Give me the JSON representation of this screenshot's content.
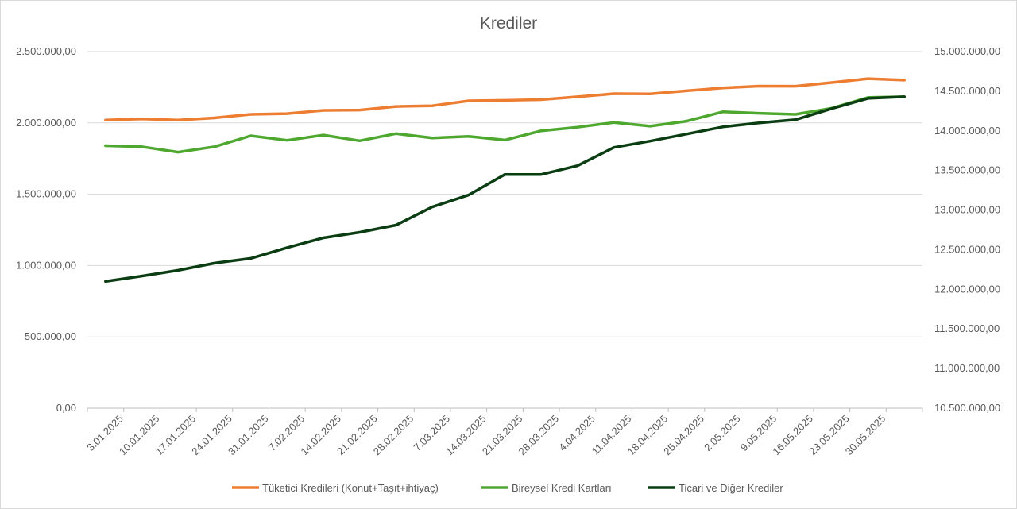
{
  "chart_data": {
    "type": "line",
    "title": "Krediler",
    "legend_position": "bottom",
    "grid": true,
    "left_axis": {
      "range": [
        0,
        2500000
      ],
      "ticks": [
        "0,00",
        "500.000,00",
        "1.000.000,00",
        "1.500.000,00",
        "2.000.000,00",
        "2.500.000,00"
      ]
    },
    "right_axis": {
      "range": [
        10500000,
        15000000
      ],
      "ticks": [
        "10.500.000,00",
        "11.000.000,00",
        "11.500.000,00",
        "12.000.000,00",
        "12.500.000,00",
        "13.000.000,00",
        "13.500.000,00",
        "14.000.000,00",
        "14.500.000,00",
        "15.000.000,00"
      ]
    },
    "categories": [
      "3.01.2025",
      "10.01.2025",
      "17.01.2025",
      "24.01.2025",
      "31.01.2025",
      "7.02.2025",
      "14.02.2025",
      "21.02.2025",
      "28.02.2025",
      "7.03.2025",
      "14.03.2025",
      "21.03.2025",
      "28.03.2025",
      "4.04.2025",
      "11.04.2025",
      "18.04.2025",
      "25.04.2025",
      "2.05.2025",
      "9.05.2025",
      "16.05.2025",
      "23.05.2025",
      "30.05.2025",
      ""
    ],
    "series": [
      {
        "name": "Tüketici Kredileri (Konut+Taşıt+ihtiyaç)",
        "axis": "left",
        "color": "#ED7D31",
        "values": [
          2020000,
          2028000,
          2020000,
          2035000,
          2060000,
          2065000,
          2088000,
          2090000,
          2115000,
          2120000,
          2155000,
          2158000,
          2163000,
          2183000,
          2205000,
          2204000,
          2225000,
          2245000,
          2258000,
          2257000,
          2283000,
          2310000,
          2300000
        ]
      },
      {
        "name": "Bireysel Kredi Kartları",
        "axis": "left",
        "color": "#4EA72E",
        "values": [
          1840000,
          1833000,
          1795000,
          1833000,
          1910000,
          1878000,
          1915000,
          1875000,
          1925000,
          1895000,
          1906000,
          1880000,
          1945000,
          1970000,
          2003000,
          1977000,
          2012000,
          2078000,
          2068000,
          2060000,
          2103000,
          2178000,
          2183000
        ]
      },
      {
        "name": "Ticari ve Diğer Krediler",
        "axis": "right",
        "color": "#0B3D12",
        "values": [
          12100000,
          12168000,
          12240000,
          12330000,
          12390000,
          12525000,
          12650000,
          12720000,
          12810000,
          13040000,
          13190000,
          13450000,
          13450000,
          13560000,
          13790000,
          13870000,
          13960000,
          14050000,
          14100000,
          14140000,
          14280000,
          14410000,
          14430000
        ]
      }
    ]
  }
}
